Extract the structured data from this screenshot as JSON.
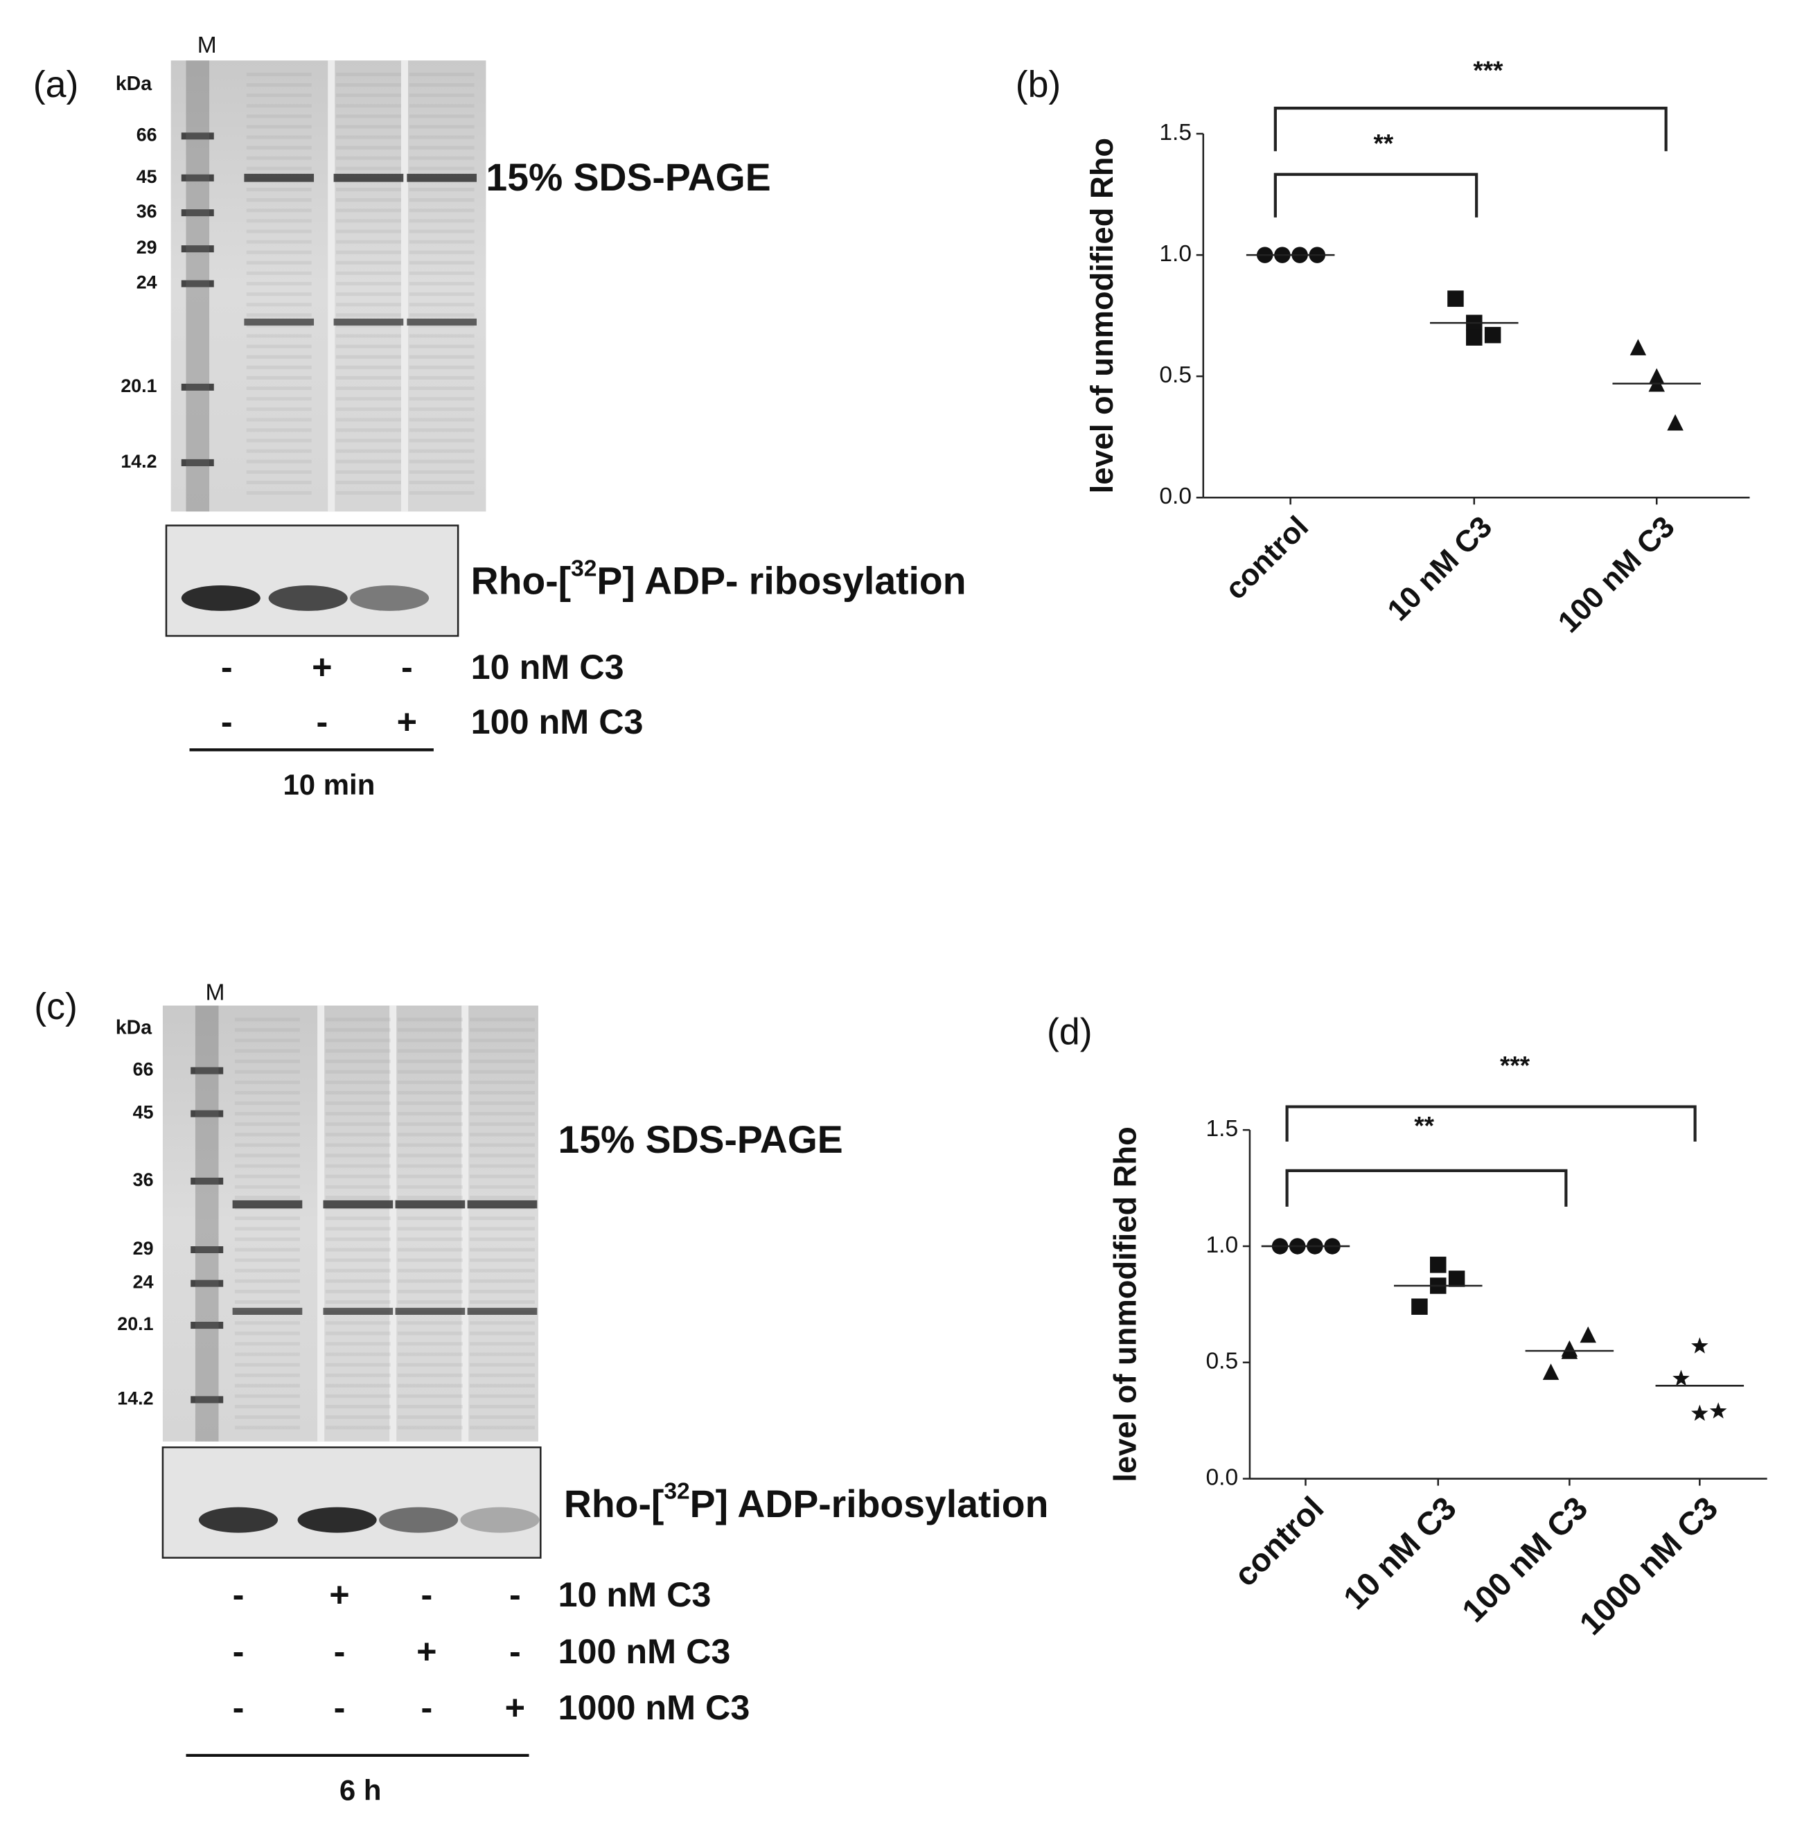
{
  "gels": [
    {
      "panel": "(a)",
      "marker_lane": "M",
      "unit": "kDa",
      "markers": [
        "66",
        "45",
        "36",
        "29",
        "24",
        "20.1",
        "14.2"
      ],
      "gel_label": "15% SDS-PAGE",
      "blot_label": {
        "pre": "Rho-[",
        "sup": "32",
        "post": "P] ADP- ribosylation"
      },
      "conditions": [
        {
          "name": "10 nM C3",
          "signs": [
            "-",
            "+",
            "-"
          ]
        },
        {
          "name": "100 nM C3",
          "signs": [
            "-",
            "-",
            "+"
          ]
        }
      ],
      "time": "10 min"
    },
    {
      "panel": "(c)",
      "marker_lane": "M",
      "unit": "kDa",
      "markers": [
        "66",
        "45",
        "36",
        "29",
        "24",
        "20.1",
        "14.2"
      ],
      "gel_label": "15% SDS-PAGE",
      "blot_label": {
        "pre": "Rho-[",
        "sup": "32",
        "post": "P] ADP-ribosylation"
      },
      "conditions": [
        {
          "name": "10 nM C3",
          "signs": [
            "-",
            "+",
            "-",
            "-"
          ]
        },
        {
          "name": "100 nM C3",
          "signs": [
            "-",
            "-",
            "+",
            "-"
          ]
        },
        {
          "name": "1000 nM C3",
          "signs": [
            "-",
            "-",
            "-",
            "+"
          ]
        }
      ],
      "time": "6 h"
    }
  ],
  "chart_data": [
    {
      "type": "dot",
      "panel": "(b)",
      "ylabel": "level of unmodified Rho",
      "categories": [
        "control",
        "10 nM C3",
        "100 nM C3"
      ],
      "values": [
        [
          1.0,
          1.0,
          1.0,
          1.0
        ],
        [
          0.72,
          0.82,
          0.66,
          0.67
        ],
        [
          0.5,
          0.62,
          0.47,
          0.31
        ]
      ],
      "means": [
        1.0,
        0.72,
        0.47
      ],
      "markers": [
        "circle",
        "square",
        "triangle"
      ],
      "color": "#111111",
      "ylim": [
        0,
        1.5
      ],
      "yticks": [
        {
          "value": 0,
          "label": "0.0"
        },
        0.5,
        {
          "value": 1,
          "label": "1.0"
        },
        1.5
      ],
      "brackets": [
        {
          "from": "control",
          "to": "10 nM C3",
          "label": "**"
        },
        {
          "from": "control",
          "to": "100 nM C3",
          "label": "***"
        }
      ]
    },
    {
      "type": "dot",
      "panel": "(d)",
      "ylabel": "level of unmodified Rho",
      "categories": [
        "control",
        "10 nM C3",
        "100 nM C3",
        "1000 nM C3"
      ],
      "values": [
        [
          1.0,
          1.0,
          1.0,
          1.0
        ],
        [
          0.92,
          0.74,
          0.83,
          0.86
        ],
        [
          0.55,
          0.46,
          0.56,
          0.62
        ],
        [
          0.57,
          0.43,
          0.28,
          0.29
        ]
      ],
      "means": [
        1.0,
        0.83,
        0.55,
        0.4
      ],
      "markers": [
        "circle",
        "square",
        "triangle",
        "star"
      ],
      "color": "#111111",
      "ylim": [
        0,
        1.5
      ],
      "yticks": [
        {
          "value": 0,
          "label": "0.0"
        },
        0.5,
        {
          "value": 1,
          "label": "1.0"
        },
        1.5
      ],
      "brackets": [
        {
          "from": "control",
          "to": "100 nM C3",
          "label": "**"
        },
        {
          "from": "control",
          "to": "1000 nM C3",
          "label": "***"
        }
      ]
    }
  ]
}
